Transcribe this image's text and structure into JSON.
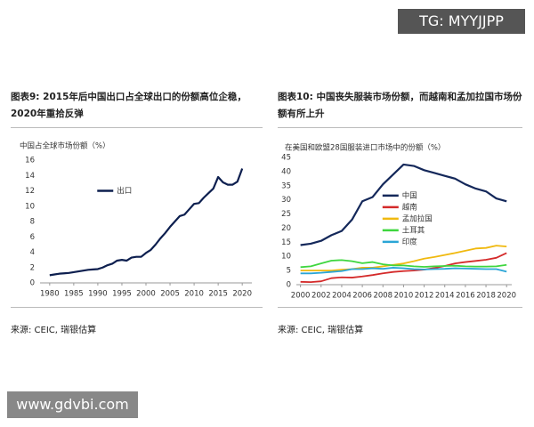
{
  "watermarks": [
    "TG: MYYJJPP",
    "www.gdvbi.com"
  ],
  "chart_data": [
    {
      "type": "line",
      "caption": "图表9: 2015年后中国出口占全球出口的份额高位企稳，2020年重拾反弹",
      "title": "中国占全球市场份额（%）",
      "source": "来源: CEIC, 瑞银估算",
      "x": [
        1980,
        1981,
        1982,
        1983,
        1984,
        1985,
        1986,
        1987,
        1988,
        1989,
        1990,
        1991,
        1992,
        1993,
        1994,
        1995,
        1996,
        1997,
        1998,
        1999,
        2000,
        2001,
        2002,
        2003,
        2004,
        2005,
        2006,
        2007,
        2008,
        2009,
        2010,
        2011,
        2012,
        2013,
        2014,
        2015,
        2016,
        2017,
        2018,
        2019,
        2020
      ],
      "series": [
        {
          "name": "出口",
          "color": "#0d1f4f",
          "values": [
            1.0,
            1.1,
            1.2,
            1.25,
            1.3,
            1.4,
            1.5,
            1.6,
            1.7,
            1.75,
            1.8,
            2.0,
            2.3,
            2.5,
            2.9,
            3.0,
            2.9,
            3.3,
            3.4,
            3.4,
            3.9,
            4.3,
            5.0,
            5.8,
            6.5,
            7.3,
            8.0,
            8.7,
            8.9,
            9.6,
            10.3,
            10.4,
            11.1,
            11.7,
            12.3,
            13.8,
            13.1,
            12.8,
            12.8,
            13.2,
            14.9
          ]
        }
      ],
      "xlim": [
        1978,
        2022
      ],
      "xticks": [
        1980,
        1985,
        1990,
        1995,
        2000,
        2005,
        2010,
        2015,
        2020
      ],
      "ylim": [
        0,
        16
      ],
      "yticks": [
        0,
        2,
        4,
        6,
        8,
        10,
        12,
        14,
        16
      ],
      "grid": false,
      "legend": "upper-left"
    },
    {
      "type": "line",
      "caption": "图表10: 中国丧失服装市场份额，而越南和孟加拉国市场份额有所上升",
      "title": "在美国和欧盟28国服装进口市场中的份额（%）",
      "source": "来源: CEIC, 瑞银估算",
      "x": [
        2000,
        2001,
        2002,
        2003,
        2004,
        2005,
        2006,
        2007,
        2008,
        2009,
        2010,
        2011,
        2012,
        2013,
        2014,
        2015,
        2016,
        2017,
        2018,
        2019,
        2020
      ],
      "series": [
        {
          "name": "中国",
          "color": "#14285a",
          "values": [
            14,
            14.5,
            15.5,
            17.5,
            19,
            23,
            29.5,
            31,
            35.5,
            39,
            42.5,
            42,
            40.5,
            39.5,
            38.5,
            37.5,
            35.5,
            34,
            33,
            30.5,
            29.5
          ]
        },
        {
          "name": "越南",
          "color": "#d42a2a",
          "values": [
            1,
            0.9,
            1.2,
            2.3,
            2.6,
            2.5,
            2.9,
            3.4,
            4,
            4.5,
            4.8,
            5,
            5.3,
            5.9,
            6.6,
            7.5,
            8,
            8.4,
            8.8,
            9.5,
            11.2
          ]
        },
        {
          "name": "孟加拉国",
          "color": "#f0b90f",
          "values": [
            5,
            5,
            5,
            5,
            5.3,
            5.5,
            6,
            6,
            6.5,
            7,
            7.5,
            8.3,
            9.2,
            9.8,
            10.5,
            11.2,
            12,
            12.8,
            13,
            13.8,
            13.5
          ]
        },
        {
          "name": "土耳其",
          "color": "#3fd63f",
          "values": [
            6.2,
            6.5,
            7.5,
            8.5,
            8.7,
            8.3,
            7.6,
            8,
            7.2,
            6.8,
            6.8,
            6.5,
            6.3,
            6.5,
            6.6,
            6.7,
            6.5,
            6.4,
            6.4,
            6.5,
            7
          ]
        },
        {
          "name": "印度",
          "color": "#2aa5d6",
          "values": [
            4,
            4,
            4.2,
            4.5,
            4.8,
            5.5,
            5.5,
            5.8,
            5.6,
            6,
            5.8,
            5.5,
            5.4,
            5.5,
            5.6,
            5.8,
            5.7,
            5.6,
            5.5,
            5.5,
            4.6
          ]
        }
      ],
      "xlim": [
        1999.6,
        2020.5
      ],
      "xticks": [
        2000,
        2002,
        2004,
        2006,
        2008,
        2010,
        2012,
        2014,
        2016,
        2018,
        2020
      ],
      "ylim": [
        0,
        45
      ],
      "yticks": [
        0,
        5,
        10,
        15,
        20,
        25,
        30,
        35,
        40,
        45
      ],
      "grid": false,
      "legend": "upper-center"
    }
  ]
}
